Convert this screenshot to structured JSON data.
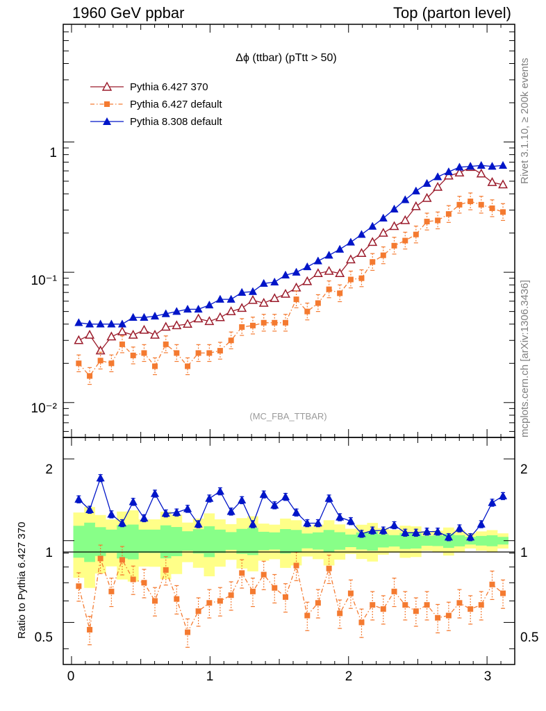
{
  "header": {
    "left": "1960 GeV ppbar",
    "right": "Top (parton level)"
  },
  "side_labels": {
    "top": "Rivet 3.1.10, ≥ 200k events",
    "bottom": "mcplots.cern.ch [arXiv:1306.3436]"
  },
  "chart_data": {
    "type": "line",
    "title": "Δϕ (ttbar) (pTtt > 50)",
    "watermark": "(MC_FBA_TTBAR)",
    "ylabel_ratio": "Ratio to Pythia 6.427 370",
    "xlim": [
      -0.06,
      3.2
    ],
    "ylim_main": [
      0.0054,
      8.0
    ],
    "ylim_ratio": [
      0.35,
      2.4
    ],
    "y_log": true,
    "x_ticks": [
      "0",
      "1",
      "2",
      "3"
    ],
    "y_ticks_main": [
      "1",
      "10⁻¹",
      "10⁻²"
    ],
    "y_ticks_ratio": [
      "2",
      "1",
      "0.5"
    ],
    "legend_position": "top-left",
    "x": [
      0.052,
      0.131,
      0.209,
      0.288,
      0.366,
      0.445,
      0.524,
      0.602,
      0.681,
      0.759,
      0.838,
      0.916,
      0.995,
      1.073,
      1.152,
      1.23,
      1.309,
      1.388,
      1.466,
      1.545,
      1.623,
      1.702,
      1.78,
      1.859,
      1.937,
      2.016,
      2.094,
      2.173,
      2.251,
      2.33,
      2.409,
      2.487,
      2.566,
      2.644,
      2.723,
      2.801,
      2.88,
      2.958,
      3.037,
      3.115
    ],
    "series": [
      {
        "name": "Pythia 6.427 370",
        "color": "#9b1b2b",
        "marker": "open-triangle",
        "style": "solid",
        "values": [
          0.03,
          0.033,
          0.025,
          0.032,
          0.035,
          0.033,
          0.036,
          0.033,
          0.038,
          0.039,
          0.04,
          0.044,
          0.042,
          0.045,
          0.05,
          0.053,
          0.061,
          0.058,
          0.063,
          0.068,
          0.076,
          0.085,
          0.098,
          0.102,
          0.098,
          0.125,
          0.14,
          0.17,
          0.2,
          0.225,
          0.25,
          0.32,
          0.37,
          0.45,
          0.55,
          0.58,
          0.64,
          0.57,
          0.49,
          0.47
        ]
      },
      {
        "name": "Pythia 6.427 default",
        "color": "#f47a30",
        "marker": "square",
        "style": "dashdot",
        "values": [
          0.02,
          0.016,
          0.021,
          0.02,
          0.028,
          0.023,
          0.024,
          0.019,
          0.028,
          0.024,
          0.019,
          0.024,
          0.024,
          0.025,
          0.03,
          0.038,
          0.039,
          0.041,
          0.041,
          0.041,
          0.062,
          0.05,
          0.058,
          0.074,
          0.069,
          0.088,
          0.09,
          0.12,
          0.135,
          0.16,
          0.175,
          0.195,
          0.245,
          0.25,
          0.28,
          0.33,
          0.35,
          0.33,
          0.31,
          0.29
        ]
      },
      {
        "name": "Pythia 8.308 default",
        "color": "#0015c8",
        "marker": "triangle",
        "style": "solid",
        "values": [
          0.041,
          0.04,
          0.04,
          0.04,
          0.04,
          0.045,
          0.045,
          0.046,
          0.048,
          0.05,
          0.052,
          0.052,
          0.056,
          0.062,
          0.062,
          0.07,
          0.071,
          0.082,
          0.084,
          0.095,
          0.1,
          0.11,
          0.122,
          0.135,
          0.15,
          0.17,
          0.195,
          0.225,
          0.26,
          0.305,
          0.36,
          0.42,
          0.48,
          0.54,
          0.59,
          0.64,
          0.65,
          0.66,
          0.65,
          0.66
        ]
      }
    ],
    "ratio_series": [
      {
        "name": "Pythia 8.308 default",
        "values": [
          1.42,
          1.3,
          1.7,
          1.25,
          1.16,
          1.39,
          1.21,
          1.49,
          1.26,
          1.27,
          1.31,
          1.15,
          1.43,
          1.52,
          1.28,
          1.41,
          1.15,
          1.48,
          1.35,
          1.45,
          1.27,
          1.16,
          1.16,
          1.43,
          1.22,
          1.18,
          1.06,
          1.09,
          1.09,
          1.14,
          1.07,
          1.07,
          1.08,
          1.08,
          1.03,
          1.11,
          1.03,
          1.15,
          1.38,
          1.46
        ]
      },
      {
        "name": "Pythia 6.427 default",
        "values": [
          0.68,
          0.47,
          0.86,
          0.65,
          0.85,
          0.72,
          0.7,
          0.6,
          0.78,
          0.61,
          0.46,
          0.55,
          0.59,
          0.6,
          0.63,
          0.76,
          0.65,
          0.75,
          0.67,
          0.62,
          0.81,
          0.53,
          0.59,
          0.79,
          0.54,
          0.64,
          0.5,
          0.58,
          0.56,
          0.65,
          0.58,
          0.55,
          0.58,
          0.52,
          0.53,
          0.59,
          0.56,
          0.58,
          0.69,
          0.64
        ]
      }
    ]
  }
}
